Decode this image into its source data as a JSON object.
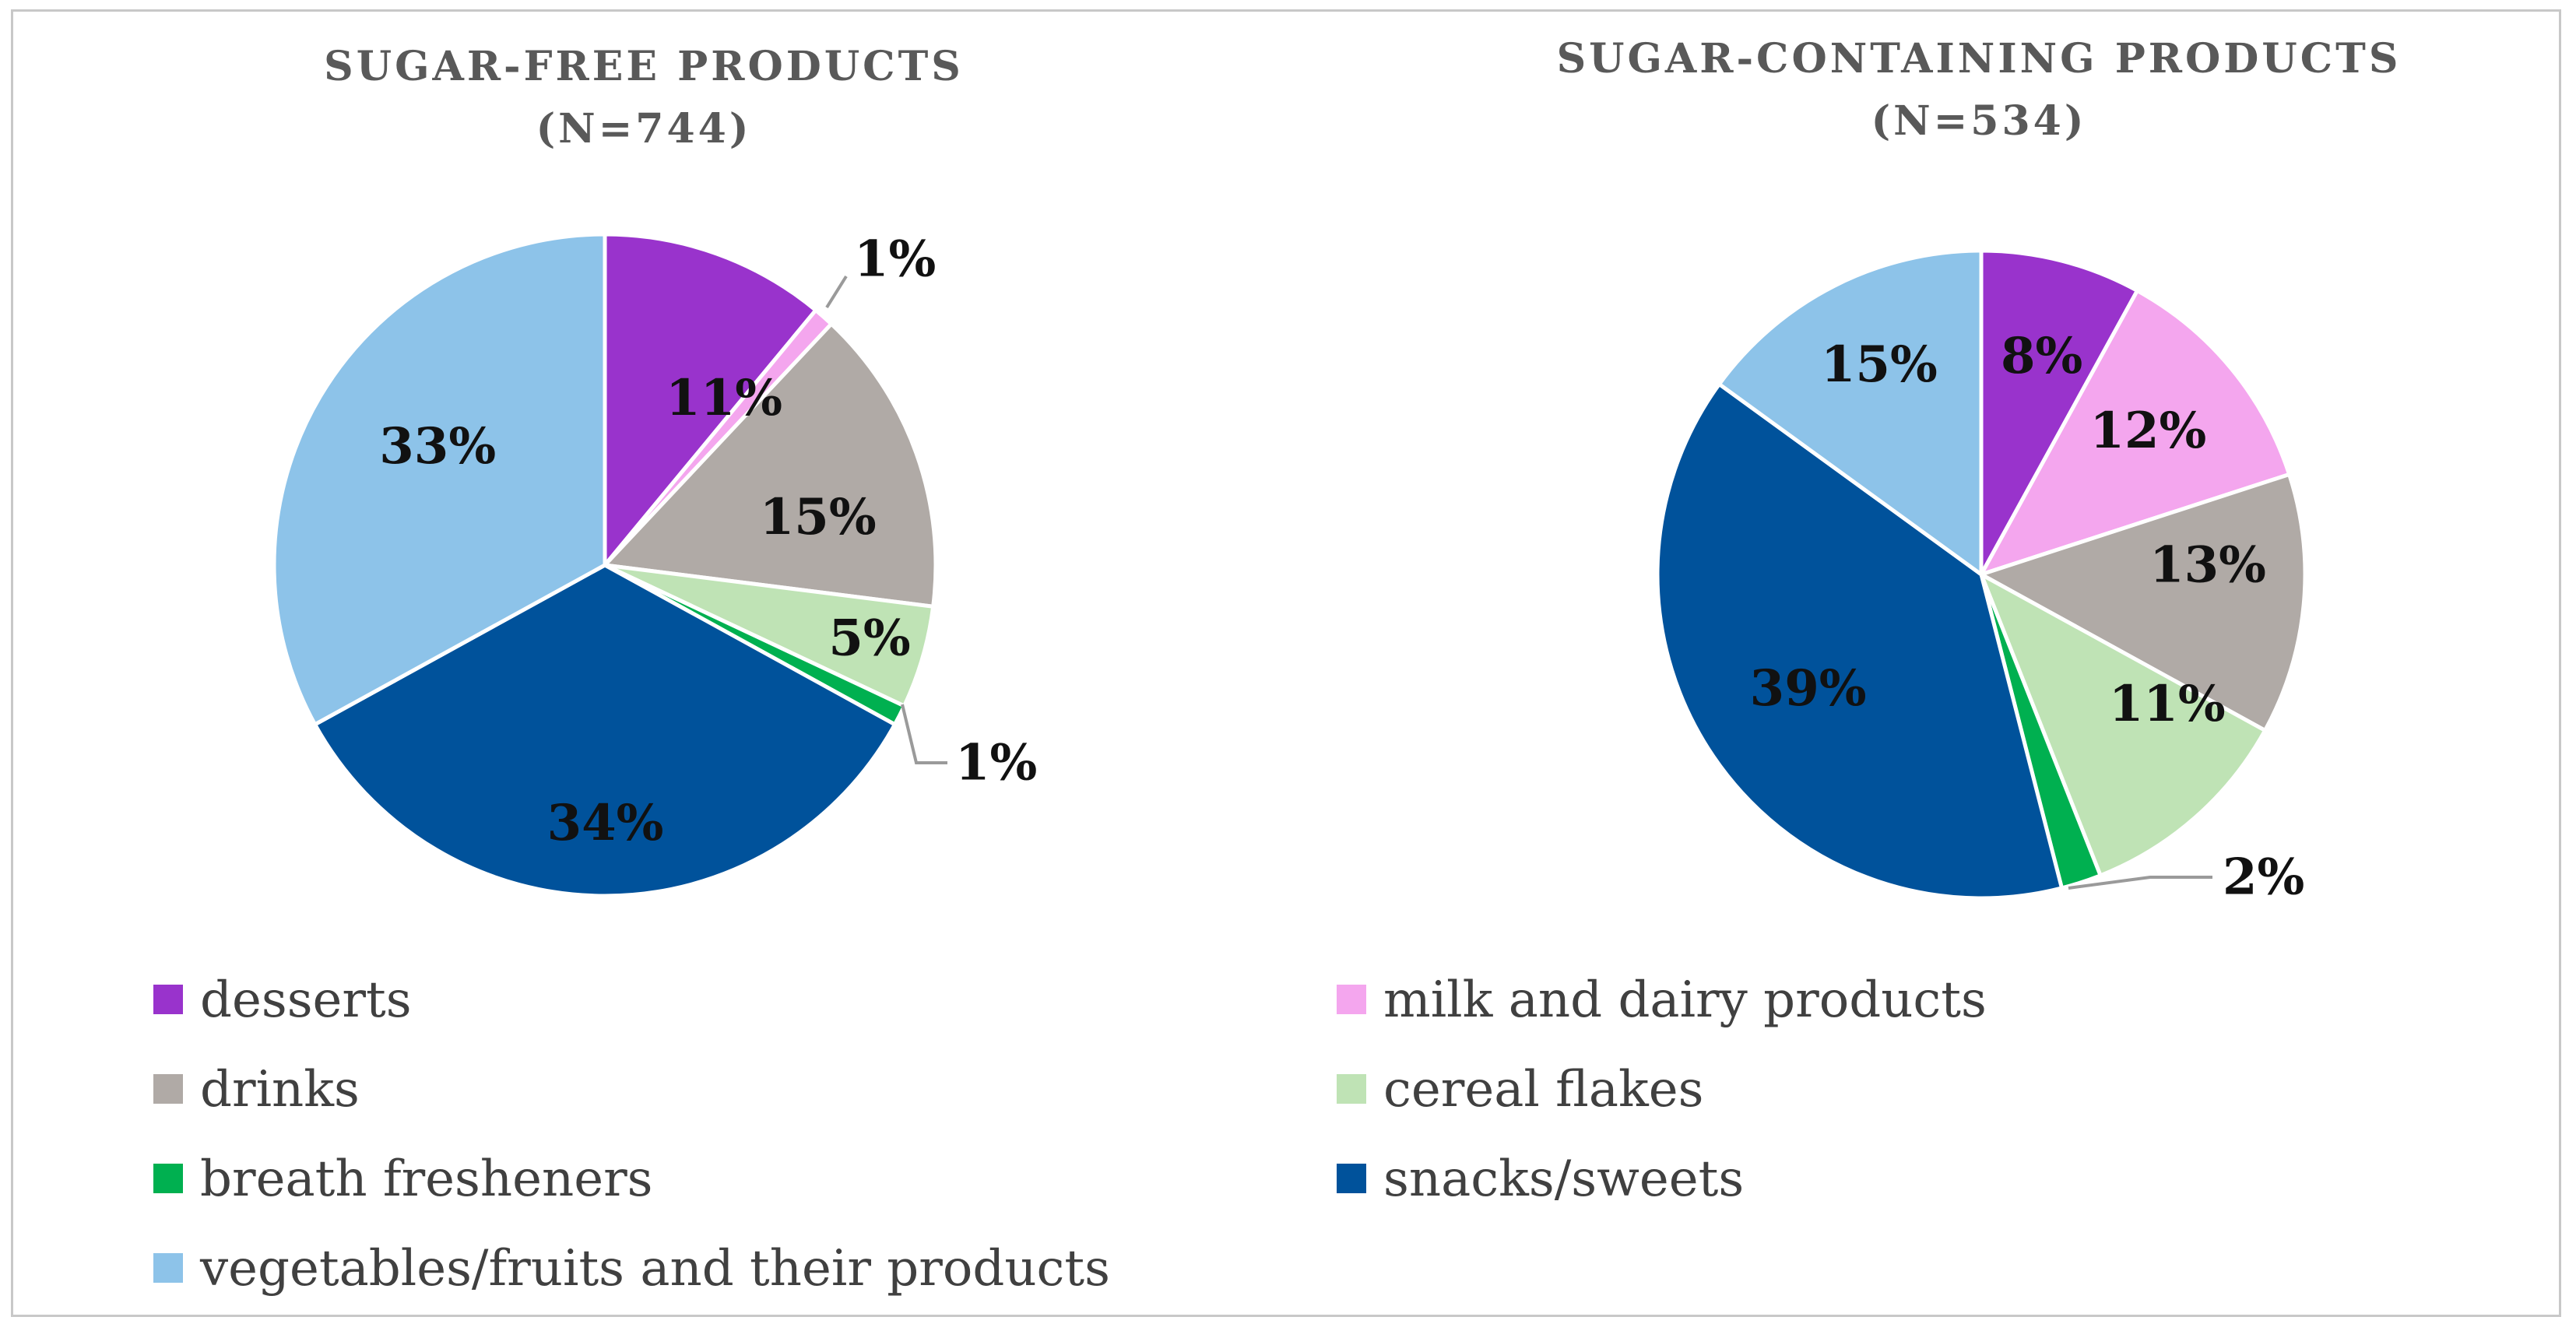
{
  "chart_data": [
    {
      "type": "pie",
      "title": "SUGAR-FREE PRODUCTS",
      "subtitle": "(N=744)",
      "categories": [
        "desserts",
        "milk and dairy products",
        "drinks",
        "cereal flakes",
        "breath fresheners",
        "snacks/sweets",
        "vegetables/fruits and their products"
      ],
      "values": [
        11,
        1,
        15,
        5,
        1,
        34,
        33
      ],
      "labels": [
        "11%",
        "1%",
        "15%",
        "5%",
        "1%",
        "34%",
        "33%"
      ]
    },
    {
      "type": "pie",
      "title": "SUGAR-CONTAINING PRODUCTS",
      "subtitle": "(N=534)",
      "categories": [
        "desserts",
        "milk and dairy products",
        "drinks",
        "cereal flakes",
        "breath fresheners",
        "snacks/sweets",
        "vegetables/fruits and their products"
      ],
      "values": [
        8,
        12,
        13,
        11,
        2,
        39,
        15
      ],
      "labels": [
        "8%",
        "12%",
        "13%",
        "11%",
        "2%",
        "39%",
        "15%"
      ]
    }
  ],
  "legend": {
    "position": "bottom",
    "items": [
      {
        "label": "desserts",
        "color": "#9933cc"
      },
      {
        "label": "milk and dairy products",
        "color": "#f4a6ee"
      },
      {
        "label": "drinks",
        "color": "#b0aaa6"
      },
      {
        "label": "cereal flakes",
        "color": "#bfe3b5"
      },
      {
        "label": "breath fresheners",
        "color": "#00b050"
      },
      {
        "label": "snacks/sweets",
        "color": "#00529b"
      },
      {
        "label": "vegetables/fruits and their products",
        "color": "#8dc3e9"
      }
    ]
  }
}
